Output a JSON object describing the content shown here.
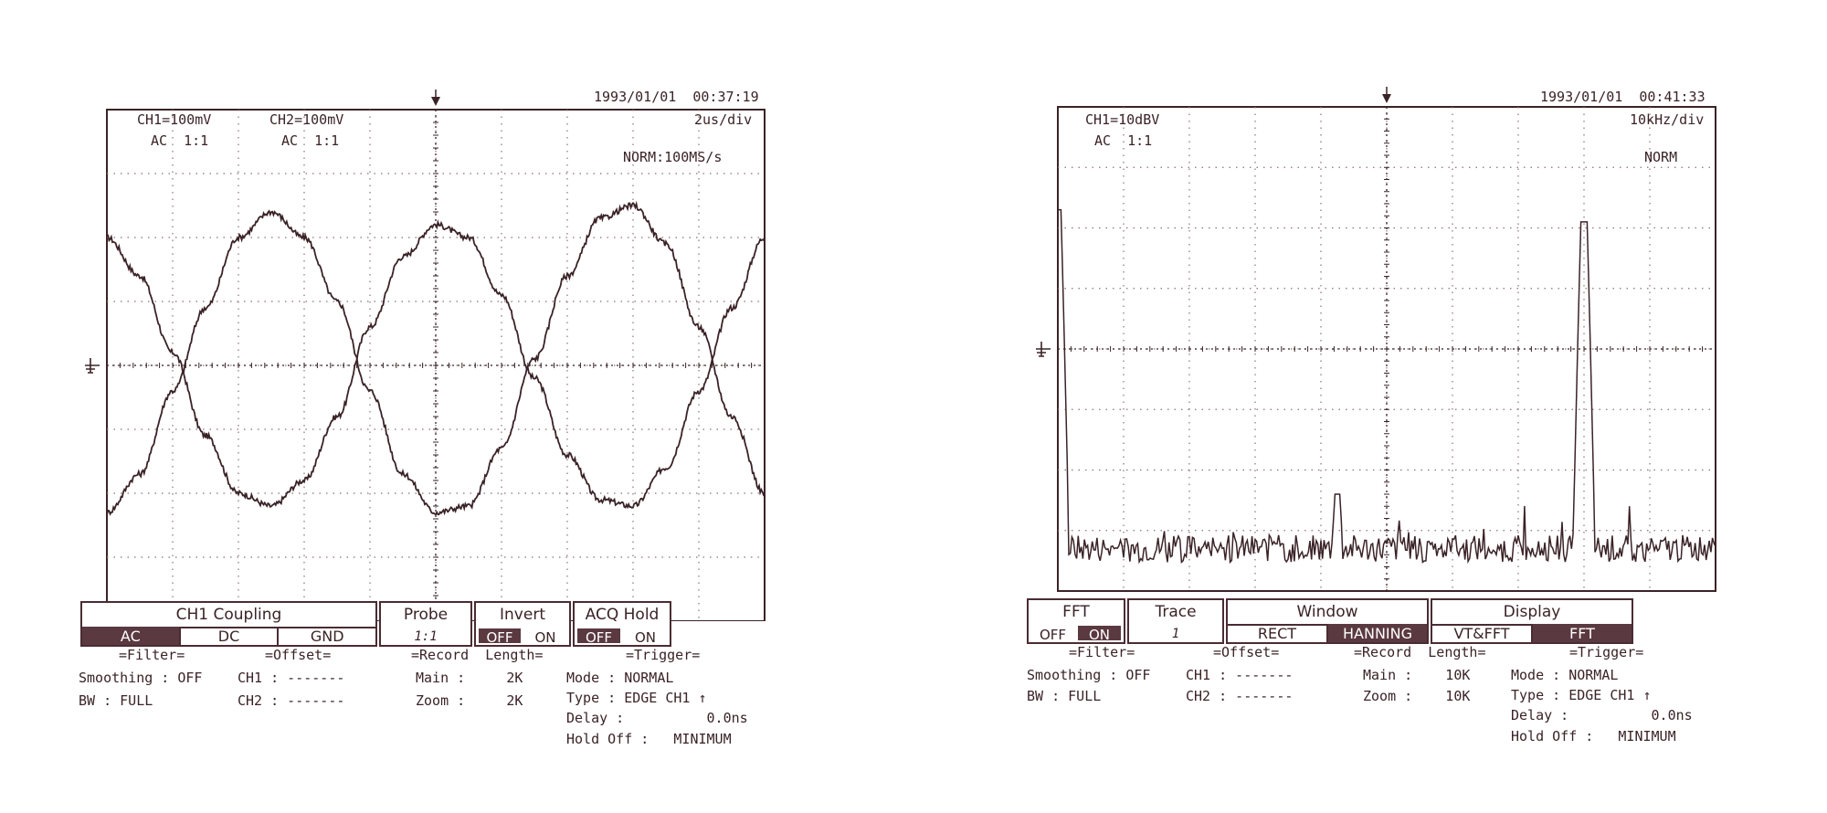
{
  "chart_data": [
    {
      "type": "line",
      "title": "",
      "timestamp": "1993/01/01  00:37:19",
      "channels": [
        "CH1=100mV",
        "CH2=100mV"
      ],
      "couplings": [
        "AC  1:1",
        "AC  1:1"
      ],
      "timebase": "2us/div",
      "mode": "NORM:100MS/s",
      "grid": {
        "x_divs": 10,
        "y_divs": 8
      },
      "xlim": [
        0,
        20
      ],
      "ylim": [
        -4,
        4
      ],
      "xlabel": "",
      "ylabel": "",
      "series": [
        {
          "x": [
            0,
            1,
            2,
            3,
            4,
            5,
            6,
            7,
            8,
            9,
            10,
            11,
            12,
            13,
            14,
            15,
            16,
            17,
            18,
            19,
            20
          ],
          "values": [
            2.0,
            1.4,
            0.2,
            -1.1,
            -2.0,
            -2.2,
            -1.8,
            -0.8,
            0.6,
            1.7,
            2.2,
            2.0,
            1.1,
            -0.2,
            -1.4,
            -2.1,
            -2.2,
            -1.6,
            -0.4,
            0.9,
            2.0
          ]
        },
        {
          "x": [
            0,
            1,
            2,
            3,
            4,
            5,
            6,
            7,
            8,
            9,
            10,
            11,
            12,
            13,
            14,
            15,
            16,
            17,
            18,
            19,
            20
          ],
          "values": [
            -2.3,
            -1.7,
            -0.4,
            0.9,
            2.0,
            2.4,
            2.0,
            1.0,
            -0.4,
            -1.7,
            -2.3,
            -2.2,
            -1.3,
            0.1,
            1.4,
            2.3,
            2.5,
            1.9,
            0.6,
            -0.8,
            -2.0
          ]
        }
      ]
    },
    {
      "type": "line",
      "title": "",
      "timestamp": "1993/01/01  00:41:33",
      "channels": [
        "CH1=10dBV"
      ],
      "couplings": [
        "AC  1:1"
      ],
      "timebase": "10kHz/div",
      "mode": "NORM",
      "grid": {
        "x_divs": 10,
        "y_divs": 8
      },
      "xlim": [
        0,
        100
      ],
      "ylim": [
        -4,
        4
      ],
      "xlabel": "",
      "ylabel": "",
      "series": [
        {
          "peaks": [
            {
              "x": 0.0,
              "y": 2.3
            },
            {
              "x": 42.5,
              "y": -2.4
            },
            {
              "x": 80.0,
              "y": 2.1
            }
          ],
          "noise_floor": -3.3
        }
      ]
    }
  ],
  "left": {
    "menu": {
      "coupling_title": "CH1 Coupling",
      "coupling_opts": [
        "AC",
        "DC",
        "GND"
      ],
      "probe_title": "Probe",
      "probe_val": "1:1",
      "invert_title": "Invert",
      "invert_opts": [
        "OFF",
        "ON"
      ],
      "acq_title": "ACQ  Hold",
      "acq_opts": [
        "OFF",
        "ON"
      ]
    },
    "info": {
      "filter_hdr": "=Filter=",
      "smoothing": "Smoothing : OFF",
      "bw": "BW : FULL",
      "offset_hdr": "=Offset=",
      "off_ch1": "CH1 : -------",
      "off_ch2": "CH2 : -------",
      "record_hdr": "=Record  Length=",
      "rec_main": "Main :     2K",
      "rec_zoom": "Zoom :     2K",
      "trig_hdr": "=Trigger=",
      "trig_mode": "Mode : NORMAL",
      "trig_type": "Type : EDGE CH1 ↑",
      "trig_delay": "Delay :          0.0ns",
      "trig_hold": "Hold Off :   MINIMUM"
    }
  },
  "right": {
    "menu": {
      "fft_title": "FFT",
      "fft_opts": [
        "OFF",
        "ON"
      ],
      "trace_title": "Trace",
      "trace_val": "1",
      "window_title": "Window",
      "window_opts": [
        "RECT",
        "HANNING"
      ],
      "display_title": "Display",
      "display_opts": [
        "VT&FFT",
        "FFT"
      ]
    },
    "info": {
      "filter_hdr": "=Filter=",
      "smoothing": "Smoothing : OFF",
      "bw": "BW : FULL",
      "offset_hdr": "=Offset=",
      "off_ch1": "CH1 : -------",
      "off_ch2": "CH2 : -------",
      "record_hdr": "=Record  Length=",
      "rec_main": "Main :    10K",
      "rec_zoom": "Zoom :    10K",
      "trig_hdr": "=Trigger=",
      "trig_mode": "Mode : NORMAL",
      "trig_type": "Type : EDGE CH1 ↑",
      "trig_delay": "Delay :          0.0ns",
      "trig_hold": "Hold Off :   MINIMUM"
    }
  },
  "colors": {
    "ink": "#3a2328",
    "grid": "#8a7277",
    "menu_sel": "#5a3940"
  }
}
